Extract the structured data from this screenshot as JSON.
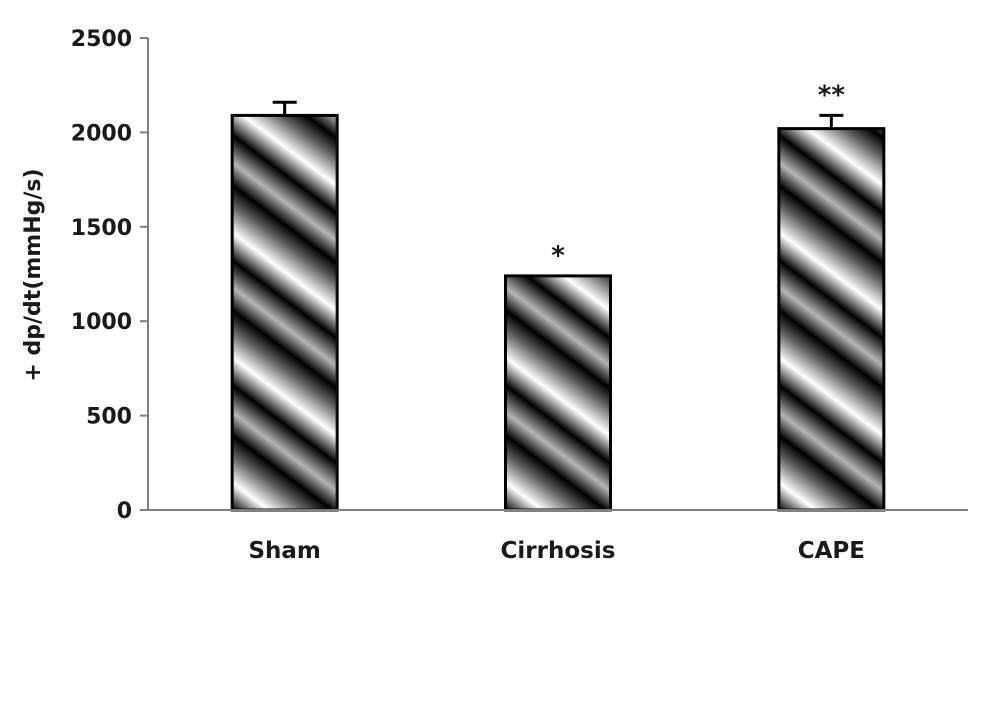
{
  "chart_data": {
    "type": "bar",
    "categories": [
      "Sham",
      "Cirrhosis",
      "CAPE"
    ],
    "values": [
      2090,
      1240,
      2020
    ],
    "error": [
      70,
      0,
      70
    ],
    "annotations": [
      "",
      "*",
      "**"
    ],
    "ylabel": "+ dp/dt(mmHg/s)",
    "xlabel": "",
    "ylim": [
      0,
      2500
    ],
    "yticks": [
      0,
      500,
      1000,
      1500,
      2000,
      2500
    ],
    "ytick_labels": [
      "0",
      "500",
      "1000",
      "1500",
      "2000",
      "2500"
    ],
    "grid": false,
    "legend": "none",
    "colors": {
      "bar_dark": "#000000",
      "bar_light": "#ffffff",
      "bar_mid": "#9a9a9a",
      "axis": "#7f7f7f",
      "outline": "#000000"
    }
  }
}
